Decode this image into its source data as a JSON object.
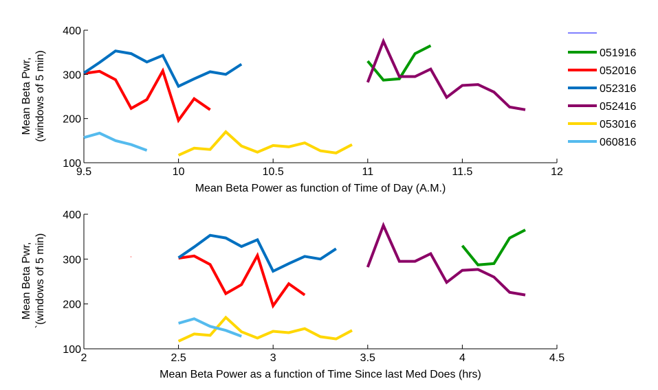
{
  "chart_data": [
    {
      "type": "line",
      "xlabel": "Mean Beta Power as function of Time of Day (A.M.)",
      "ylabel": [
        "Mean Beta Pwr,",
        "(windows of 5 min)"
      ],
      "xlim": [
        9.5,
        12
      ],
      "ylim": [
        100,
        400
      ],
      "xticks": [
        "9.5",
        "10",
        "10.5",
        "11",
        "11.5",
        "12"
      ],
      "yticks": [
        "100",
        "200",
        "300",
        "400"
      ],
      "grid": false,
      "legend": "outside-right",
      "series": [
        {
          "name": "051916",
          "color": "#009900",
          "x": [
            11.0,
            11.083,
            11.167,
            11.25,
            11.333
          ],
          "y": [
            330,
            287,
            290,
            347,
            365
          ]
        },
        {
          "name": "052016",
          "color": "#ff0000",
          "x": [
            9.5,
            9.583,
            9.667,
            9.75,
            9.833,
            9.917,
            10.0,
            10.083,
            10.167
          ],
          "y": [
            302,
            307,
            288,
            223,
            243,
            308,
            196,
            245,
            220
          ]
        },
        {
          "name": "052316",
          "color": "#0070c0",
          "x": [
            9.5,
            9.583,
            9.667,
            9.75,
            9.833,
            9.917,
            10.0,
            10.083,
            10.167,
            10.25,
            10.333
          ],
          "y": [
            303,
            327,
            353,
            347,
            328,
            343,
            273,
            290,
            306,
            300,
            323
          ]
        },
        {
          "name": "052416",
          "color": "#8b0066",
          "x": [
            11.0,
            11.083,
            11.167,
            11.25,
            11.333,
            11.417,
            11.5,
            11.583,
            11.667,
            11.75,
            11.833
          ],
          "y": [
            282,
            375,
            295,
            295,
            312,
            248,
            275,
            277,
            260,
            226,
            220
          ]
        },
        {
          "name": "053016",
          "color": "#ffd700",
          "x": [
            10.0,
            10.083,
            10.167,
            10.25,
            10.333,
            10.417,
            10.5,
            10.583,
            10.667,
            10.75,
            10.833,
            10.917
          ],
          "y": [
            117,
            133,
            130,
            170,
            138,
            124,
            139,
            136,
            145,
            127,
            122,
            141
          ]
        },
        {
          "name": "060816",
          "color": "#55bbee",
          "x": [
            9.5,
            9.583,
            9.667,
            9.75,
            9.833
          ],
          "y": [
            157,
            167,
            150,
            141,
            128
          ]
        }
      ]
    },
    {
      "type": "line",
      "xlabel": "Mean Beta Power as a function of Time Since last Med Does (hrs)",
      "ylabel": [
        "Mean Beta Pwr,",
        "`(windows of 5 min)"
      ],
      "xlim": [
        2,
        4.5
      ],
      "ylim": [
        100,
        400
      ],
      "xticks": [
        "2",
        "2.5",
        "3",
        "3.5",
        "4",
        "4.5"
      ],
      "yticks": [
        "100",
        "200",
        "300",
        "400"
      ],
      "grid": false,
      "series": [
        {
          "name": "051916",
          "color": "#009900",
          "x": [
            4.0,
            4.083,
            4.167,
            4.25,
            4.333
          ],
          "y": [
            330,
            287,
            290,
            347,
            365
          ]
        },
        {
          "name": "052016",
          "color": "#ff0000",
          "x": [
            2.5,
            2.583,
            2.667,
            2.75,
            2.833,
            2.917,
            3.0,
            3.083,
            3.167
          ],
          "y": [
            302,
            307,
            288,
            223,
            243,
            308,
            196,
            245,
            220
          ]
        },
        {
          "name": "052316",
          "color": "#0070c0",
          "x": [
            2.5,
            2.583,
            2.667,
            2.75,
            2.833,
            2.917,
            3.0,
            3.083,
            3.167,
            3.25,
            3.333
          ],
          "y": [
            303,
            327,
            353,
            347,
            328,
            343,
            273,
            290,
            306,
            300,
            323
          ]
        },
        {
          "name": "052416",
          "color": "#8b0066",
          "x": [
            3.5,
            3.583,
            3.667,
            3.75,
            3.833,
            3.917,
            4.0,
            4.083,
            4.167,
            4.25,
            4.333
          ],
          "y": [
            282,
            375,
            295,
            295,
            312,
            248,
            275,
            277,
            260,
            226,
            220
          ]
        },
        {
          "name": "053016",
          "color": "#ffd700",
          "x": [
            2.5,
            2.583,
            2.667,
            2.75,
            2.833,
            2.917,
            3.0,
            3.083,
            3.167,
            3.25,
            3.333,
            3.417
          ],
          "y": [
            117,
            133,
            130,
            170,
            138,
            124,
            139,
            136,
            145,
            127,
            122,
            141
          ]
        },
        {
          "name": "060816",
          "color": "#55bbee",
          "x": [
            2.5,
            2.583,
            2.667,
            2.75,
            2.833
          ],
          "y": [
            157,
            167,
            150,
            141,
            128
          ]
        }
      ]
    }
  ],
  "legend": {
    "entries": [
      {
        "label": "",
        "color": "#0000ff"
      },
      {
        "label": "051916",
        "color": "#009900"
      },
      {
        "label": "052016",
        "color": "#ff0000"
      },
      {
        "label": "052316",
        "color": "#0070c0"
      },
      {
        "label": "052416",
        "color": "#8b0066"
      },
      {
        "label": "053016",
        "color": "#ffd700"
      },
      {
        "label": "060816",
        "color": "#55bbee"
      }
    ]
  }
}
